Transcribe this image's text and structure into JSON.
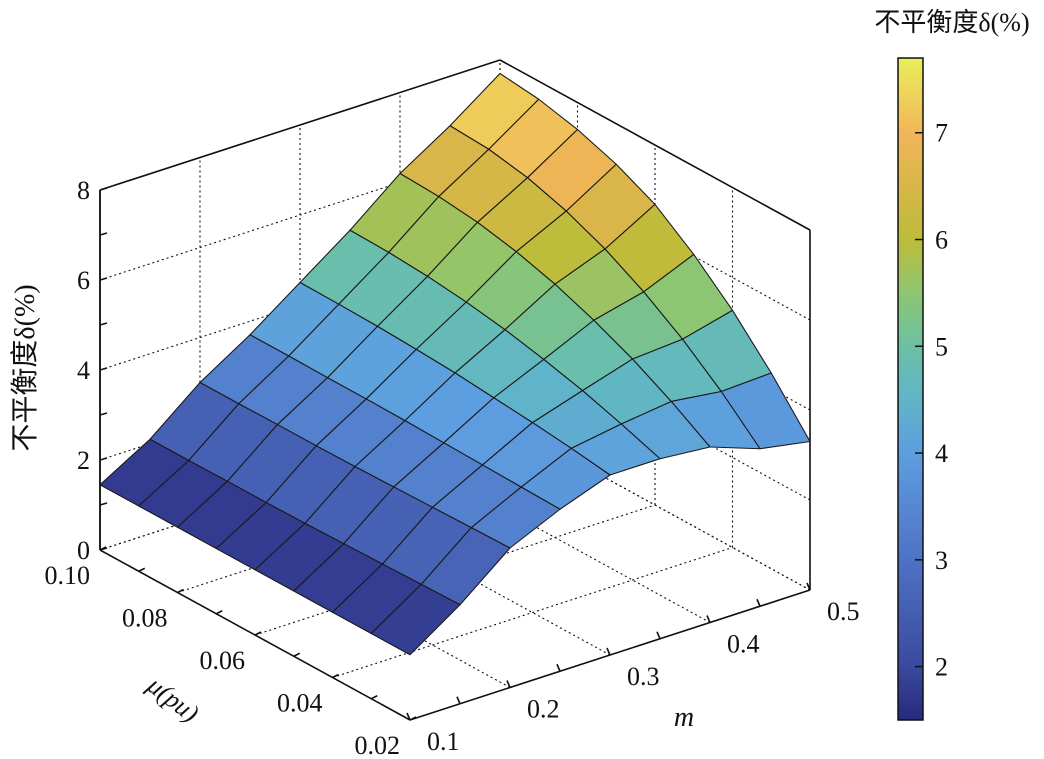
{
  "chart_data": {
    "type": "surface",
    "title": "",
    "xlabel": "m",
    "ylabel": "μ(pu)",
    "zlabel": "不平衡度δ(%)",
    "x": [
      0.1,
      0.15,
      0.2,
      0.25,
      0.3,
      0.35,
      0.4,
      0.45,
      0.5
    ],
    "y": [
      0.02,
      0.03,
      0.04,
      0.05,
      0.06,
      0.07,
      0.08,
      0.09,
      0.1
    ],
    "z": [
      [
        1.45,
        2.2,
        3.1,
        3.6,
        4.0,
        4.0,
        3.9,
        3.5,
        3.3
      ],
      [
        1.45,
        2.18,
        3.08,
        3.62,
        4.12,
        4.3,
        4.44,
        4.3,
        4.35
      ],
      [
        1.45,
        2.16,
        3.06,
        3.64,
        4.22,
        4.57,
        4.91,
        4.99,
        5.27
      ],
      [
        1.45,
        2.14,
        3.04,
        3.66,
        4.3,
        4.79,
        5.3,
        5.57,
        6.04
      ],
      [
        1.45,
        2.12,
        3.02,
        3.68,
        4.38,
        4.98,
        5.63,
        6.05,
        6.68
      ],
      [
        1.45,
        2.11,
        3.01,
        3.69,
        4.43,
        5.12,
        5.88,
        6.42,
        7.1
      ],
      [
        1.45,
        2.11,
        3.01,
        3.69,
        4.47,
        5.22,
        6.06,
        6.69,
        7.4
      ],
      [
        1.45,
        2.1,
        3.0,
        3.7,
        4.49,
        5.28,
        6.16,
        6.85,
        7.6
      ],
      [
        1.45,
        2.1,
        3.0,
        3.7,
        4.5,
        5.3,
        6.2,
        6.9,
        7.7
      ]
    ],
    "xlim": [
      0.1,
      0.5
    ],
    "ylim": [
      0.02,
      0.1
    ],
    "zlim": [
      0,
      8
    ],
    "x_ticks": [
      "0.1",
      "0.2",
      "0.3",
      "0.4",
      "0.5"
    ],
    "y_ticks": [
      "0.02",
      "0.04",
      "0.06",
      "0.08",
      "0.10"
    ],
    "z_ticks": [
      "0",
      "2",
      "4",
      "6",
      "8"
    ],
    "grid": true,
    "colorbar": {
      "label": "不平衡度δ(%)",
      "range": [
        1.5,
        7.7
      ],
      "ticks": [
        "2",
        "3",
        "4",
        "5",
        "6",
        "7"
      ],
      "colormap": [
        [
          1.5,
          "#28297e"
        ],
        [
          2.0,
          "#3a4a9e"
        ],
        [
          3.0,
          "#4f72c4"
        ],
        [
          4.0,
          "#5d9ee0"
        ],
        [
          4.5,
          "#60b5c8"
        ],
        [
          5.0,
          "#6cc0a4"
        ],
        [
          5.5,
          "#8ec670"
        ],
        [
          6.0,
          "#bdbc3a"
        ],
        [
          6.5,
          "#d7b648"
        ],
        [
          7.0,
          "#f2b55a"
        ],
        [
          7.7,
          "#e9ef5a"
        ]
      ]
    }
  }
}
